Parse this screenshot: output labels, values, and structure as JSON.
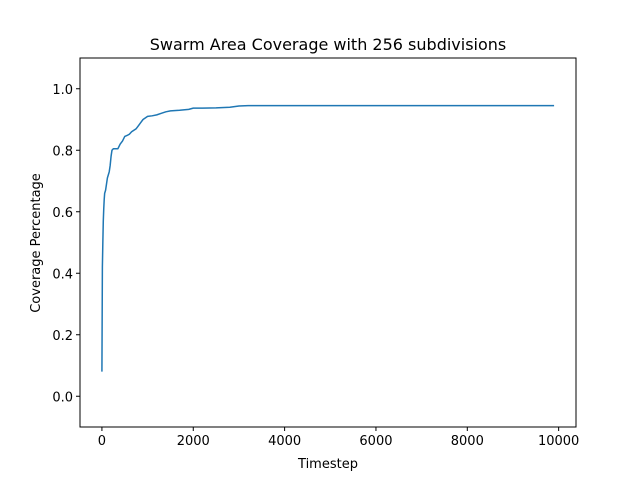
{
  "chart_data": {
    "type": "line",
    "title": "Swarm Area Coverage with 256 subdivisions",
    "xlabel": "Timestep",
    "ylabel": "Coverage Percentage",
    "xlim": [
      -480,
      10380
    ],
    "ylim": [
      -0.1,
      1.1
    ],
    "xticks": [
      0,
      2000,
      4000,
      6000,
      8000,
      10000
    ],
    "xtick_labels": [
      "0",
      "2000",
      "4000",
      "6000",
      "8000",
      "10000"
    ],
    "yticks": [
      0.0,
      0.2,
      0.4,
      0.6,
      0.8,
      1.0
    ],
    "ytick_labels": [
      "0.0",
      "0.2",
      "0.4",
      "0.6",
      "0.8",
      "1.0"
    ],
    "grid": false,
    "colors": {
      "line": "#1f77b4",
      "axes": "#000000",
      "background": "#ffffff"
    },
    "series": [
      {
        "x": [
          0,
          10,
          20,
          30,
          40,
          50,
          60,
          80,
          100,
          120,
          140,
          160,
          180,
          200,
          220,
          250,
          300,
          350,
          400,
          450,
          500,
          550,
          600,
          650,
          700,
          750,
          800,
          850,
          900,
          1000,
          1100,
          1200,
          1300,
          1400,
          1500,
          1700,
          1900,
          2000,
          2200,
          2500,
          2800,
          2900,
          3000,
          3200,
          4000,
          6000,
          8000,
          9900
        ],
        "y": [
          0.08,
          0.42,
          0.5,
          0.57,
          0.61,
          0.64,
          0.66,
          0.67,
          0.69,
          0.71,
          0.72,
          0.73,
          0.75,
          0.78,
          0.8,
          0.805,
          0.805,
          0.805,
          0.82,
          0.83,
          0.845,
          0.848,
          0.852,
          0.86,
          0.865,
          0.87,
          0.88,
          0.89,
          0.9,
          0.91,
          0.912,
          0.915,
          0.92,
          0.925,
          0.928,
          0.93,
          0.933,
          0.937,
          0.937,
          0.938,
          0.94,
          0.942,
          0.944,
          0.945,
          0.945,
          0.945,
          0.945,
          0.945
        ]
      }
    ]
  }
}
